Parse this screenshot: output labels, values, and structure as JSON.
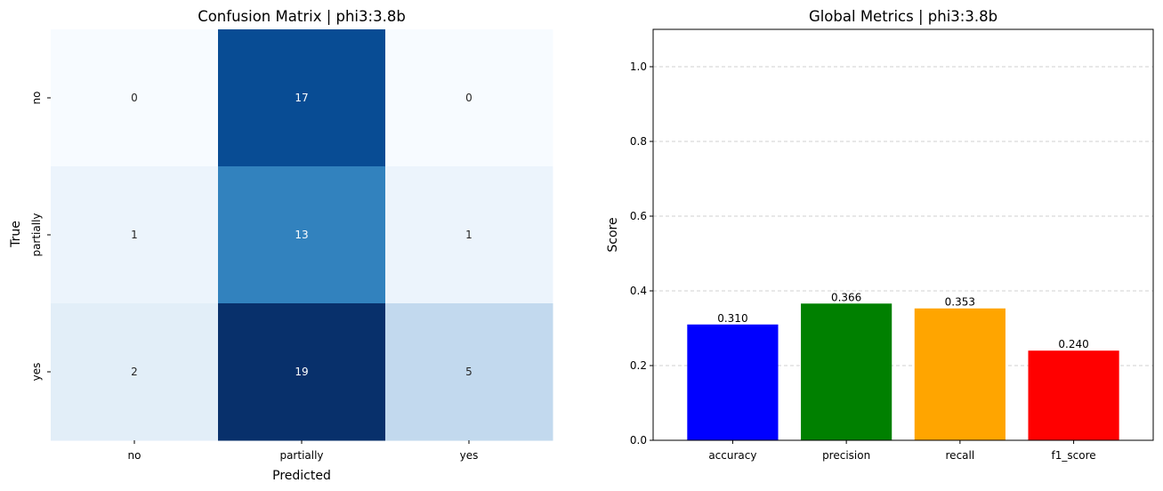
{
  "chart_data": [
    {
      "type": "heatmap",
      "title": "Confusion Matrix | phi3:3.8b",
      "xlabel": "Predicted",
      "ylabel": "True",
      "x_categories": [
        "no",
        "partially",
        "yes"
      ],
      "y_categories": [
        "no",
        "partially",
        "yes"
      ],
      "matrix": [
        [
          0,
          17,
          0
        ],
        [
          1,
          13,
          1
        ],
        [
          2,
          19,
          5
        ]
      ],
      "colormap": "Blues",
      "vmin": 0,
      "vmax": 19,
      "colorbar": false
    },
    {
      "type": "bar",
      "title": "Global Metrics | phi3:3.8b",
      "xlabel": "",
      "ylabel": "Score",
      "categories": [
        "accuracy",
        "precision",
        "recall",
        "f1_score"
      ],
      "values": [
        0.31,
        0.366,
        0.353,
        0.24
      ],
      "value_labels": [
        "0.310",
        "0.366",
        "0.353",
        "0.240"
      ],
      "colors": [
        "#0000ff",
        "#008000",
        "#ffa500",
        "#ff0000"
      ],
      "ylim": [
        0,
        1.1
      ],
      "yticks": [
        "0.0",
        "0.2",
        "0.4",
        "0.6",
        "0.8",
        "1.0"
      ],
      "ytick_values": [
        0,
        0.2,
        0.4,
        0.6,
        0.8,
        1.0
      ],
      "grid": "y-dashed"
    }
  ]
}
